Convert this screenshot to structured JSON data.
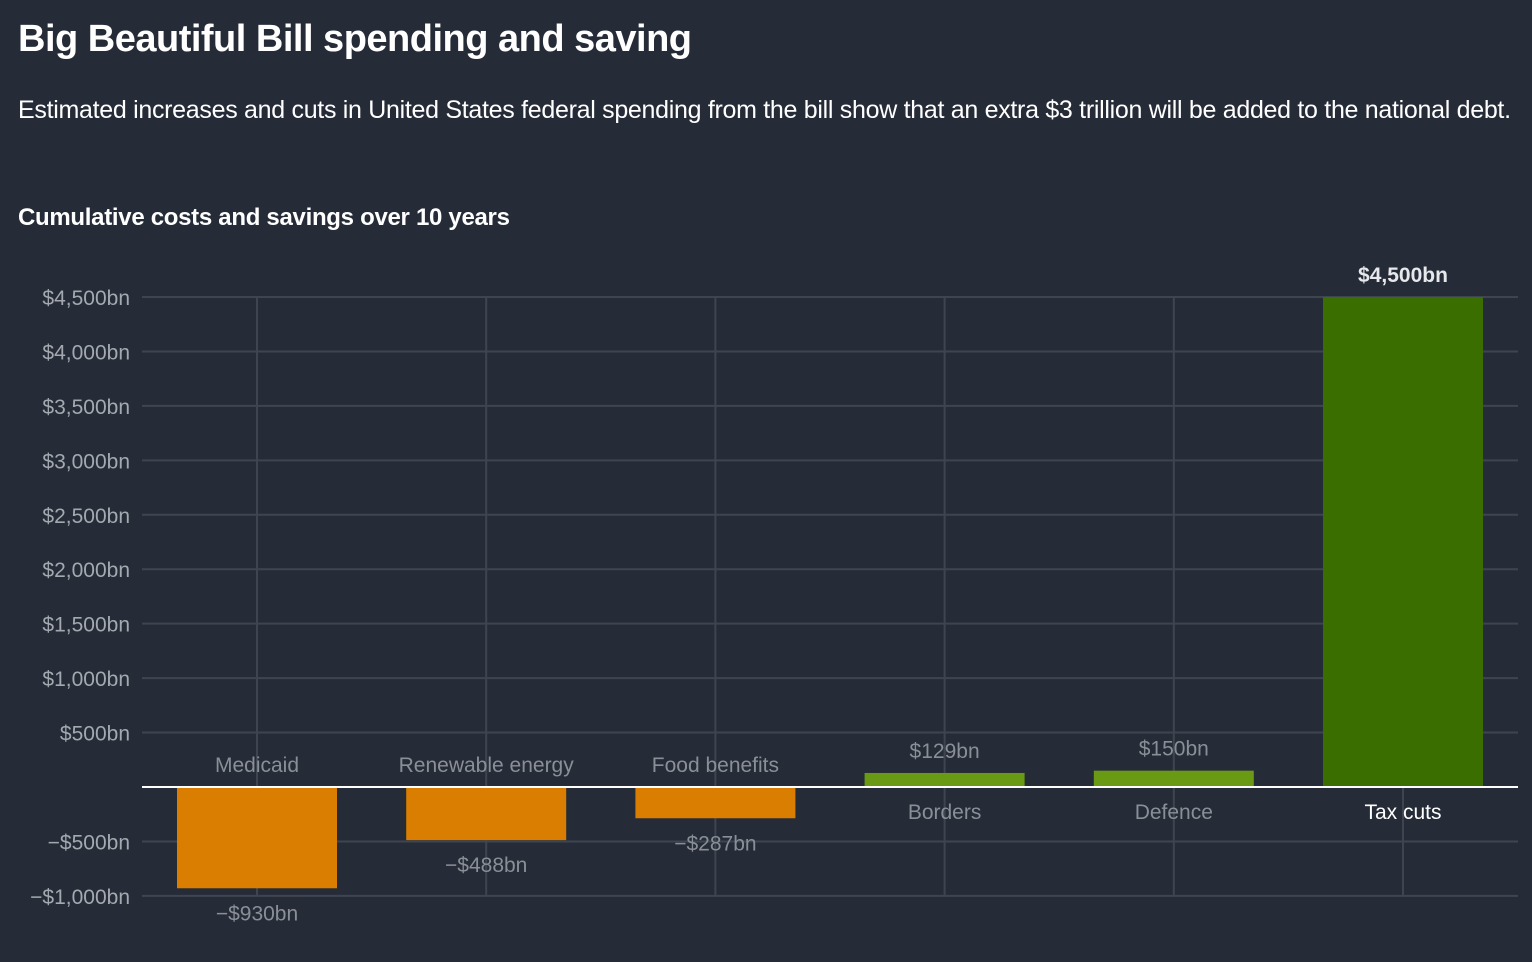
{
  "header": {
    "title": "Big Beautiful Bill spending and saving",
    "subtitle": "Estimated increases and cuts in United States federal spending from the bill show that an extra $3 trillion will be added to the national debt.",
    "chart_title": "Cumulative costs and savings over 10 years"
  },
  "colors": {
    "background": "#252b37",
    "cut": "#d97e00",
    "increase": "#6a9a14",
    "highlight": "#3a6e00",
    "grid": "#3f4550",
    "zero_line": "#ffffff"
  },
  "chart_data": {
    "type": "bar",
    "title": "Cumulative costs and savings over 10 years",
    "xlabel": "",
    "ylabel": "",
    "ylim": [
      -1000,
      4500
    ],
    "grid": true,
    "categories": [
      "Medicaid",
      "Renewable energy",
      "Food benefits",
      "Borders",
      "Defence",
      "Tax cuts"
    ],
    "values": [
      -930,
      -488,
      -287,
      129,
      150,
      4500
    ],
    "value_labels": [
      "−$930bn",
      "−$488bn",
      "−$287bn",
      "$129bn",
      "$150bn",
      "$4,500bn"
    ],
    "bar_kinds": [
      "cut",
      "cut",
      "cut",
      "increase",
      "increase",
      "highlight"
    ],
    "y_ticks": [
      4500,
      4000,
      3500,
      3000,
      2500,
      2000,
      1500,
      1000,
      500,
      -500,
      -1000
    ],
    "y_tick_labels": [
      "$4,500bn",
      "$4,000bn",
      "$3,500bn",
      "$3,000bn",
      "$2,500bn",
      "$2,000bn",
      "$1,500bn",
      "$1,000bn",
      "$500bn",
      "−$500bn",
      "−$1,000bn"
    ]
  }
}
